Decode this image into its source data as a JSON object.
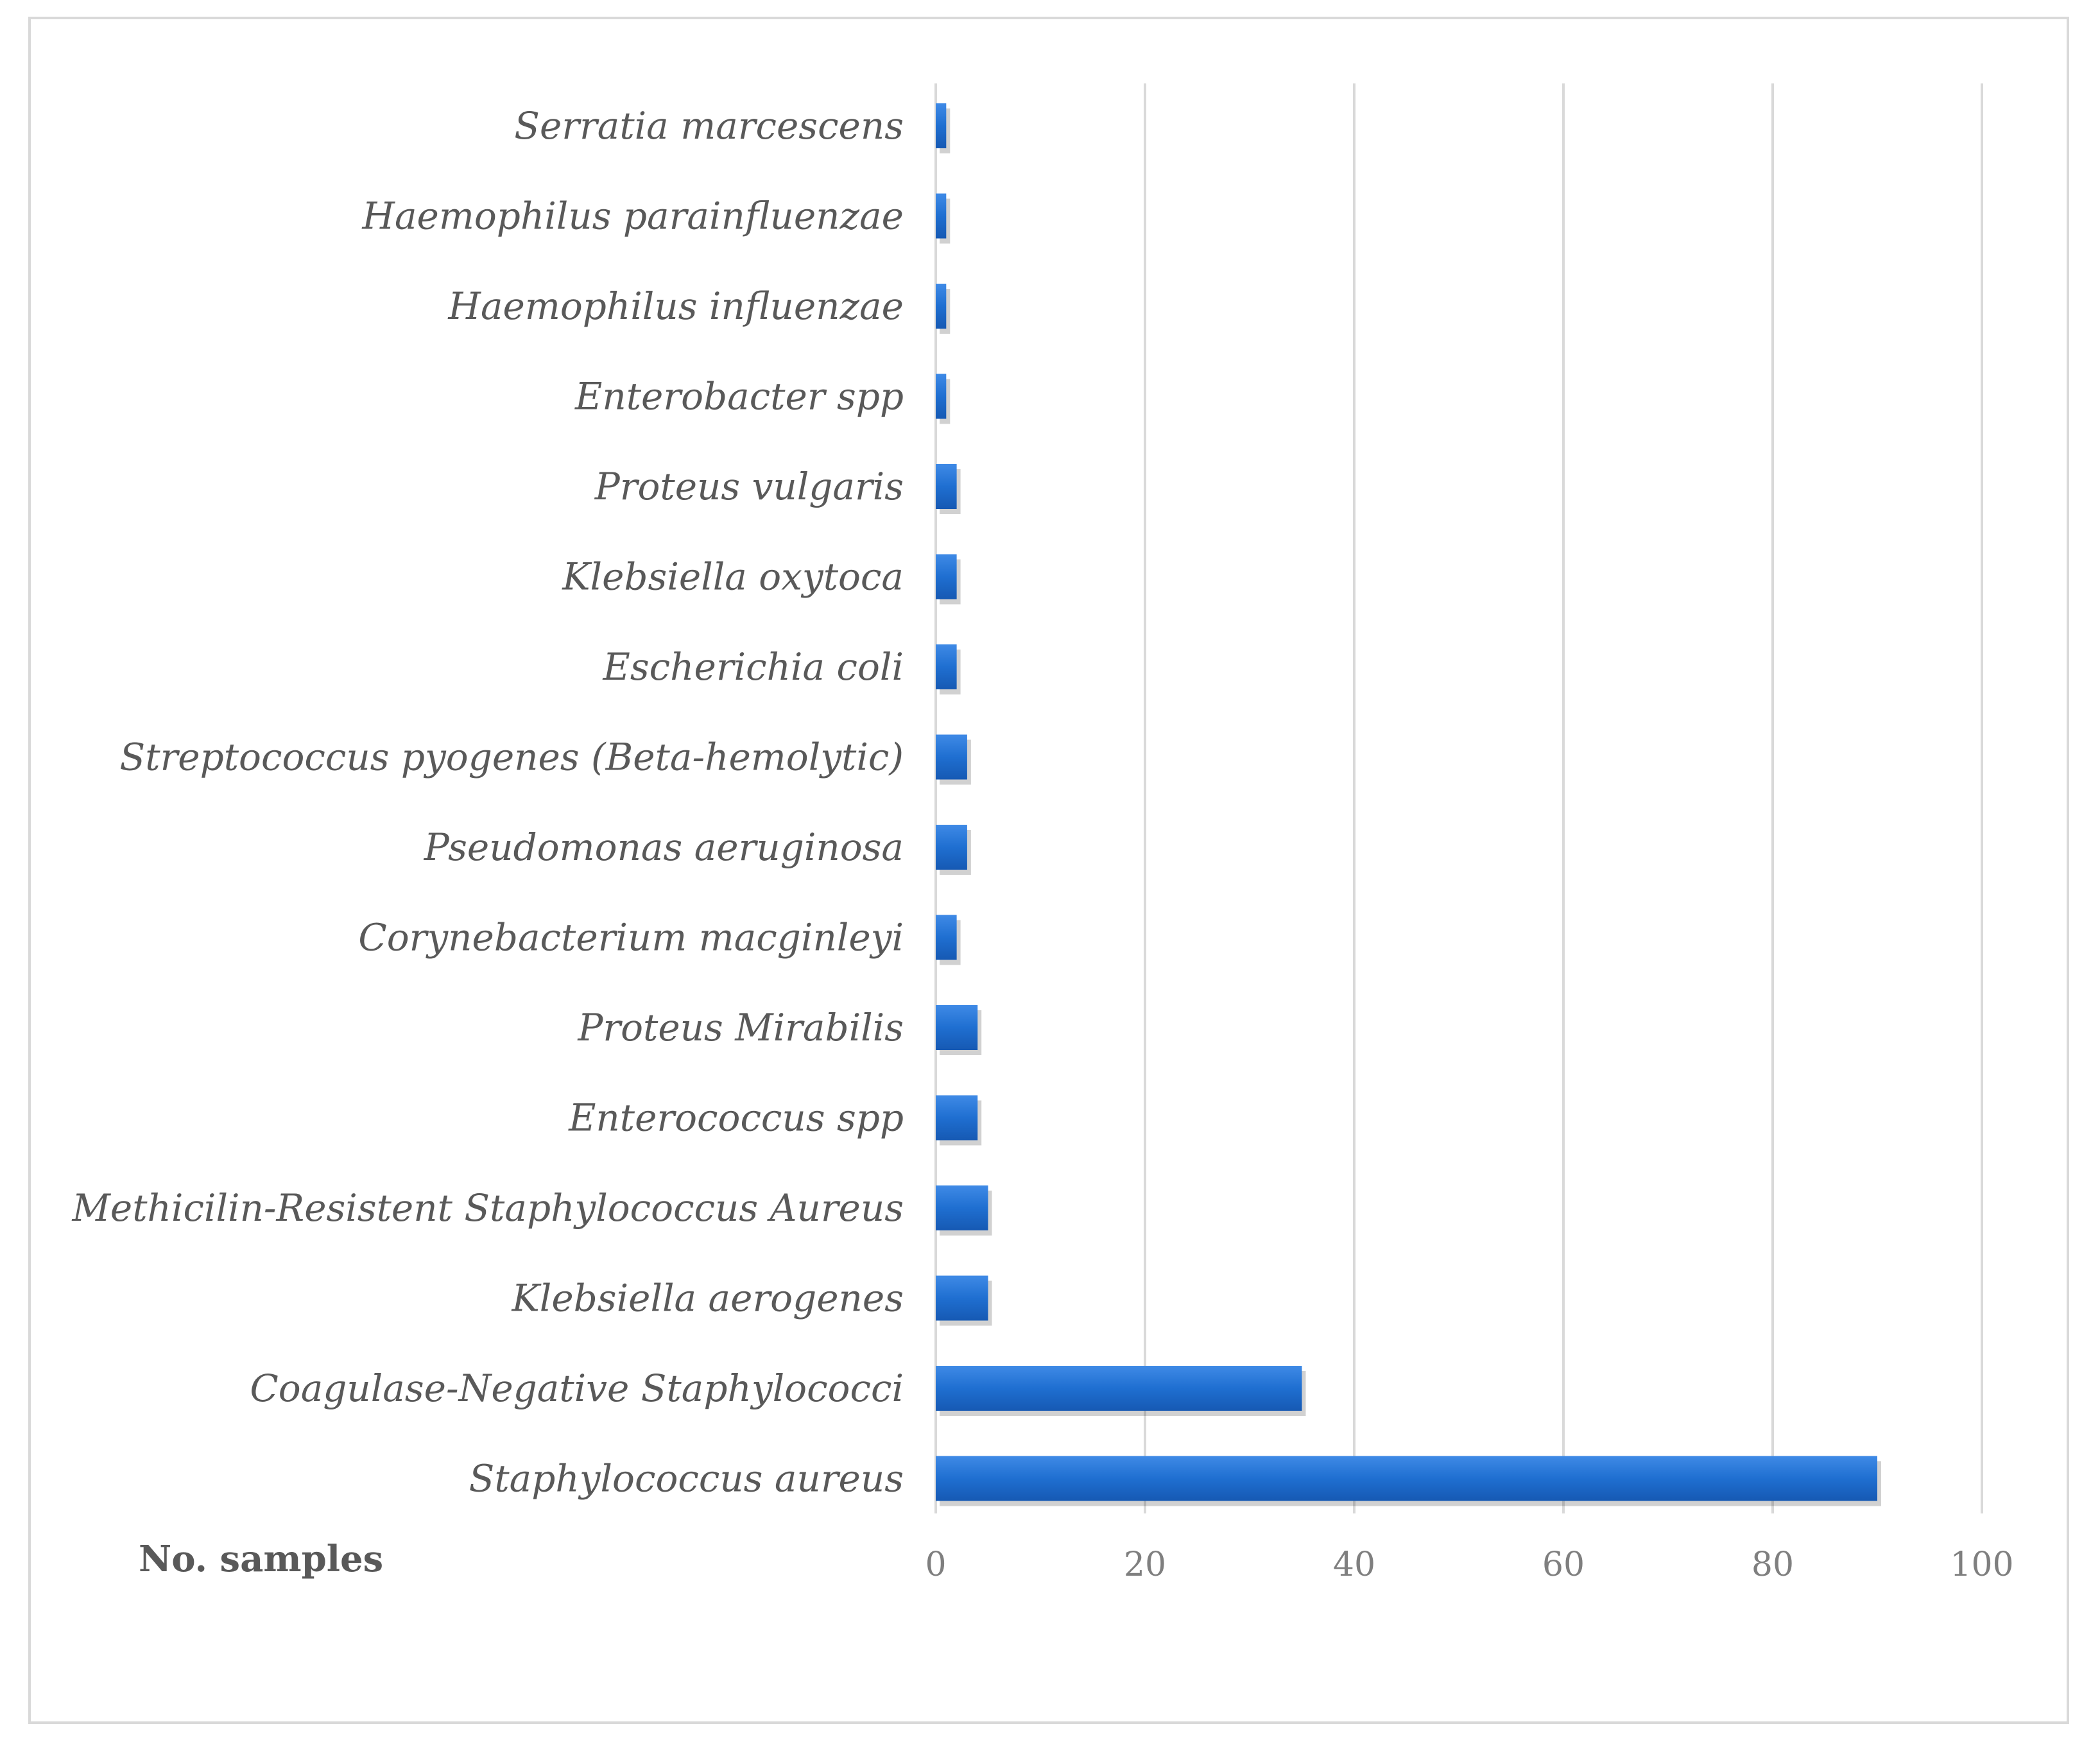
{
  "chart_data": {
    "type": "bar",
    "orientation": "horizontal",
    "title": "",
    "xlabel": "No. samples",
    "ylabel": "",
    "xlim": [
      0,
      100
    ],
    "xticks": [
      0,
      20,
      40,
      60,
      80,
      100
    ],
    "grid": true,
    "bar_color": "#1f6fd1",
    "categories": [
      "Serratia marcescens",
      "Haemophilus parainfluenzae",
      "Haemophilus influenzae",
      "Enterobacter spp",
      "Proteus vulgaris",
      "Klebsiella  oxytoca",
      "Escherichia coli",
      "Streptococcus pyogenes  (Beta-hemolytic)",
      "Pseudomonas aeruginosa",
      "Corynebacterium macginleyi",
      "Proteus Mirabilis",
      "Enterococcus  spp",
      "Methicilin-Resistent Staphylococcus Aureus",
      "Klebsiella   aerogenes",
      "Coagulase-Negative Staphylococci",
      "Staphylococcus aureus"
    ],
    "values": [
      1,
      1,
      1,
      1,
      2,
      2,
      2,
      3,
      3,
      2,
      4,
      4,
      5,
      5,
      35,
      90
    ]
  }
}
